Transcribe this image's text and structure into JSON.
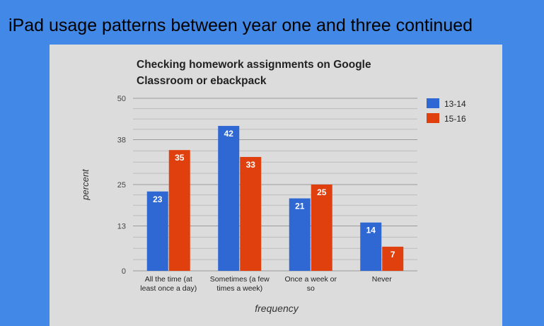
{
  "slide": {
    "title": "iPad usage patterns between year one and three continued"
  },
  "chart_data": {
    "type": "bar",
    "title_lines": [
      "Checking homework assignments on Google",
      "Classroom or ebackpack"
    ],
    "xlabel": "frequency",
    "ylabel": "percent",
    "ylim": [
      0,
      50
    ],
    "yticks": [
      0,
      13,
      25,
      38,
      50
    ],
    "categories": [
      [
        "All the time (at",
        "least once a day)"
      ],
      [
        "Sometimes (a few",
        "times a week)"
      ],
      [
        "Once a week or",
        "so"
      ],
      [
        "Never"
      ]
    ],
    "series": [
      {
        "name": "13-14",
        "color": "#2f67d3",
        "values": [
          23,
          42,
          21,
          14
        ]
      },
      {
        "name": "15-16",
        "color": "#e0400e",
        "values": [
          35,
          33,
          25,
          7
        ]
      }
    ],
    "legend_position": "top-right",
    "grid": true
  }
}
